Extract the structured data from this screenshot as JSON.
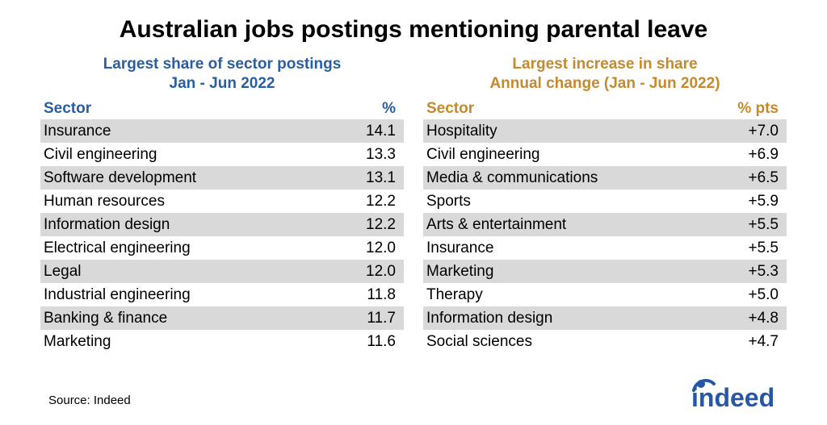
{
  "title": "Australian jobs postings mentioning parental leave",
  "title_fontsize": 30,
  "title_color": "#000000",
  "text_color": "#000000",
  "row_shade_color": "#d9d9d9",
  "row_plain_color": "#ffffff",
  "background_color": "#ffffff",
  "left_accent_color": "#2a5ea0",
  "right_accent_color": "#c48a2e",
  "body_fontsize": 19,
  "header_fontsize": 19,
  "source": "Source: Indeed",
  "logo_text": "indeed",
  "logo_color": "#2557a7",
  "left": {
    "header_line1": "Largest share of sector postings",
    "header_line2": "Jan - Jun 2022",
    "col1": "Sector",
    "col2": "%",
    "rows": [
      {
        "sector": "Insurance",
        "value": "14.1"
      },
      {
        "sector": "Civil engineering",
        "value": "13.3"
      },
      {
        "sector": "Software development",
        "value": "13.1"
      },
      {
        "sector": "Human resources",
        "value": "12.2"
      },
      {
        "sector": "Information design",
        "value": "12.2"
      },
      {
        "sector": "Electrical engineering",
        "value": "12.0"
      },
      {
        "sector": "Legal",
        "value": "12.0"
      },
      {
        "sector": "Industrial engineering",
        "value": "11.8"
      },
      {
        "sector": "Banking & finance",
        "value": "11.7"
      },
      {
        "sector": "Marketing",
        "value": "11.6"
      }
    ]
  },
  "right": {
    "header_line1": "Largest increase in share",
    "header_line2": "Annual change (Jan - Jun 2022)",
    "col1": "Sector",
    "col2": "% pts",
    "rows": [
      {
        "sector": "Hospitality",
        "value": "+7.0"
      },
      {
        "sector": "Civil engineering",
        "value": "+6.9"
      },
      {
        "sector": "Media & communications",
        "value": "+6.5"
      },
      {
        "sector": "Sports",
        "value": "+5.9"
      },
      {
        "sector": "Arts & entertainment",
        "value": "+5.5"
      },
      {
        "sector": "Insurance",
        "value": "+5.5"
      },
      {
        "sector": "Marketing",
        "value": "+5.3"
      },
      {
        "sector": "Therapy",
        "value": "+5.0"
      },
      {
        "sector": "Information design",
        "value": "+4.8"
      },
      {
        "sector": "Social sciences",
        "value": "+4.7"
      }
    ]
  }
}
